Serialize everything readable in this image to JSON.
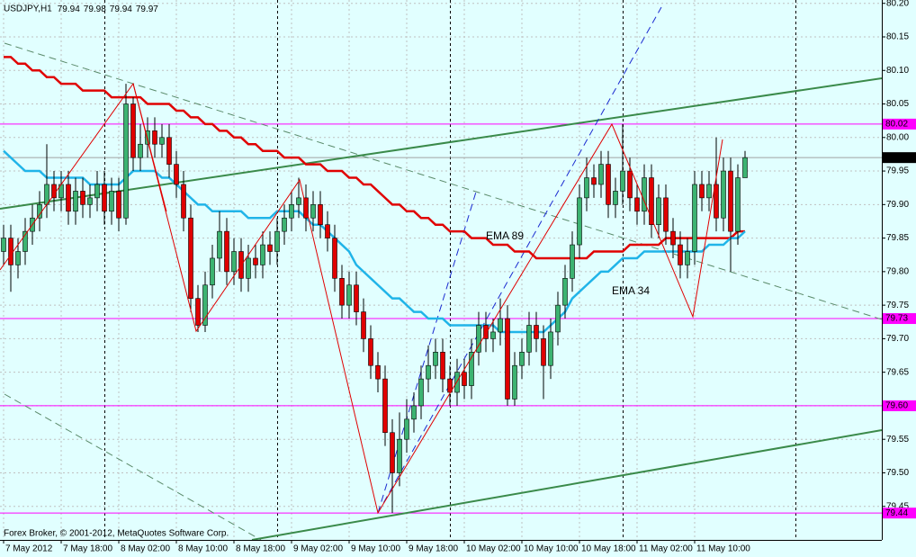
{
  "chart_data": {
    "type": "candlestick",
    "title": "USDJPY,H1",
    "header_ohlc": [
      79.94,
      79.98,
      79.94,
      79.97
    ],
    "footer": "Forex Broker, © 2001-2012, MetaQuotes Software Corp.",
    "categories": [
      "7 May 2012",
      null,
      null,
      null,
      null,
      null,
      null,
      null,
      "7 May 18:00",
      null,
      null,
      null,
      null,
      null,
      null,
      null,
      "8 May 02:00",
      null,
      null,
      null,
      null,
      null,
      null,
      null,
      "8 May 10:00",
      null,
      null,
      null,
      null,
      null,
      null,
      null,
      "8 May 18:00",
      null,
      null,
      null,
      null,
      null,
      null,
      null,
      "9 May 02:00",
      null,
      null,
      null,
      null,
      null,
      null,
      null,
      "9 May 10:00",
      null,
      null,
      null,
      null,
      null,
      null,
      null,
      "9 May 18:00",
      null,
      null,
      null,
      null,
      null,
      null,
      null,
      "10 May 02:00",
      null,
      null,
      null,
      null,
      null,
      null,
      null,
      "10 May 10:00",
      null,
      null,
      null,
      null,
      null,
      null,
      null,
      "10 May 18:00",
      null,
      null,
      null,
      null,
      null,
      null,
      null,
      "11 May 02:00",
      null,
      null,
      null,
      null,
      null,
      null,
      null,
      "11 May 10:00",
      null,
      null,
      null,
      null,
      null,
      null,
      null
    ],
    "open": [
      79.83,
      79.85,
      79.81,
      79.83,
      79.86,
      79.88,
      79.9,
      79.93,
      79.91,
      79.93,
      79.89,
      79.92,
      79.9,
      79.91,
      79.93,
      79.89,
      79.92,
      79.88,
      80.05,
      79.97,
      79.99,
      80.01,
      79.99,
      80.0,
      79.96,
      79.93,
      79.88,
      79.76,
      79.72,
      79.78,
      79.82,
      79.86,
      79.8,
      79.83,
      79.79,
      79.82,
      79.81,
      79.84,
      79.83,
      79.86,
      79.88,
      79.9,
      79.91,
      79.88,
      79.9,
      79.87,
      79.85,
      79.79,
      79.75,
      79.78,
      79.74,
      79.7,
      79.66,
      79.64,
      79.56,
      79.5,
      79.55,
      79.58,
      79.6,
      79.64,
      79.66,
      79.68,
      79.64,
      79.62,
      79.65,
      79.63,
      79.68,
      79.72,
      79.7,
      79.71,
      79.73,
      79.61,
      79.66,
      79.68,
      79.72,
      79.7,
      79.66,
      79.71,
      79.75,
      79.79,
      79.84,
      79.91,
      79.94,
      79.93,
      79.96,
      79.9,
      79.92,
      79.95,
      79.91,
      79.89,
      79.94,
      79.87,
      79.91,
      79.86,
      79.84,
      79.81,
      79.83,
      79.93,
      79.91,
      79.93,
      79.88,
      79.95,
      79.86,
      79.94
    ],
    "high": [
      79.87,
      79.87,
      79.85,
      79.88,
      79.9,
      79.92,
      79.99,
      79.95,
      79.95,
      79.95,
      79.94,
      79.94,
      79.93,
      79.95,
      79.95,
      79.94,
      79.94,
      80.08,
      80.06,
      80.02,
      80.03,
      80.03,
      80.02,
      80.02,
      79.98,
      79.95,
      79.9,
      79.78,
      79.8,
      79.84,
      79.89,
      79.88,
      79.85,
      79.85,
      79.84,
      79.84,
      79.86,
      79.86,
      79.88,
      79.9,
      79.92,
      79.94,
      79.93,
      79.92,
      79.92,
      79.89,
      79.87,
      79.81,
      79.8,
      79.8,
      79.76,
      79.72,
      79.68,
      79.66,
      79.58,
      79.59,
      79.61,
      79.62,
      79.66,
      79.69,
      79.7,
      79.7,
      79.66,
      79.67,
      79.67,
      79.7,
      79.74,
      79.74,
      79.73,
      79.76,
      79.75,
      79.68,
      79.7,
      79.74,
      79.74,
      79.72,
      79.73,
      79.77,
      79.81,
      79.86,
      79.93,
      79.97,
      79.96,
      79.98,
      79.98,
      79.94,
      80.02,
      79.97,
      79.93,
      79.96,
      79.96,
      79.93,
      79.93,
      79.88,
      79.86,
      79.85,
      79.95,
      79.95,
      79.95,
      80.0,
      79.97,
      79.97,
      79.96,
      79.98
    ],
    "low": [
      79.81,
      79.77,
      79.79,
      79.81,
      79.84,
      79.86,
      79.88,
      79.89,
      79.89,
      79.87,
      79.87,
      79.88,
      79.88,
      79.89,
      79.87,
      79.87,
      79.86,
      79.87,
      79.95,
      79.95,
      79.97,
      79.97,
      79.97,
      79.94,
      79.91,
      79.86,
      79.74,
      79.71,
      79.71,
      79.76,
      79.8,
      79.78,
      79.78,
      79.77,
      79.77,
      79.79,
      79.79,
      79.81,
      79.81,
      79.84,
      79.86,
      79.88,
      79.86,
      79.86,
      79.85,
      79.83,
      79.77,
      79.73,
      79.73,
      79.72,
      79.68,
      79.64,
      79.62,
      79.54,
      79.44,
      79.48,
      79.53,
      79.56,
      79.58,
      79.62,
      79.64,
      79.62,
      79.6,
      79.6,
      79.61,
      79.61,
      79.66,
      79.68,
      79.68,
      79.69,
      79.6,
      79.6,
      79.64,
      79.66,
      79.68,
      79.61,
      79.64,
      79.69,
      79.73,
      79.77,
      79.82,
      79.89,
      79.91,
      79.91,
      79.88,
      79.88,
      79.9,
      79.89,
      79.87,
      79.87,
      79.85,
      79.85,
      79.84,
      79.82,
      79.79,
      79.79,
      79.81,
      79.89,
      79.89,
      79.86,
      79.86,
      79.8,
      79.84,
      79.94
    ],
    "close": [
      79.85,
      79.81,
      79.83,
      79.86,
      79.88,
      79.9,
      79.93,
      79.91,
      79.93,
      79.89,
      79.92,
      79.9,
      79.91,
      79.93,
      79.89,
      79.92,
      79.88,
      80.05,
      79.97,
      79.99,
      80.01,
      79.99,
      80.0,
      79.96,
      79.93,
      79.88,
      79.76,
      79.72,
      79.78,
      79.82,
      79.86,
      79.8,
      79.83,
      79.79,
      79.82,
      79.81,
      79.84,
      79.83,
      79.86,
      79.88,
      79.9,
      79.91,
      79.88,
      79.9,
      79.87,
      79.85,
      79.79,
      79.75,
      79.78,
      79.74,
      79.7,
      79.66,
      79.64,
      79.56,
      79.5,
      79.55,
      79.58,
      79.6,
      79.64,
      79.66,
      79.68,
      79.64,
      79.62,
      79.65,
      79.63,
      79.68,
      79.72,
      79.7,
      79.71,
      79.73,
      79.61,
      79.66,
      79.68,
      79.72,
      79.7,
      79.66,
      79.71,
      79.75,
      79.79,
      79.84,
      79.91,
      79.94,
      79.93,
      79.96,
      79.9,
      79.92,
      79.95,
      79.91,
      79.89,
      79.94,
      79.87,
      79.91,
      79.86,
      79.84,
      79.81,
      79.83,
      79.93,
      79.91,
      79.93,
      79.88,
      79.95,
      79.86,
      79.94,
      79.97
    ],
    "up_color": "#3cb371",
    "down_color": "#e00000",
    "series": [
      {
        "name": "EMA 89",
        "color": "#e00000",
        "values": [
          80.12,
          80.12,
          80.11,
          80.11,
          80.1,
          80.1,
          80.09,
          80.09,
          80.08,
          80.08,
          80.08,
          80.07,
          80.07,
          80.07,
          80.07,
          80.06,
          80.06,
          80.06,
          80.06,
          80.06,
          80.05,
          80.05,
          80.05,
          80.05,
          80.04,
          80.04,
          80.03,
          80.03,
          80.02,
          80.02,
          80.01,
          80.01,
          80.0,
          80.0,
          79.99,
          79.99,
          79.98,
          79.98,
          79.98,
          79.97,
          79.97,
          79.97,
          79.96,
          79.96,
          79.96,
          79.95,
          79.95,
          79.95,
          79.94,
          79.94,
          79.93,
          79.93,
          79.92,
          79.91,
          79.9,
          79.9,
          79.89,
          79.89,
          79.88,
          79.88,
          79.87,
          79.87,
          79.86,
          79.86,
          79.86,
          79.85,
          79.85,
          79.85,
          79.84,
          79.84,
          79.84,
          79.83,
          79.83,
          79.83,
          79.82,
          79.82,
          79.82,
          79.82,
          79.82,
          79.82,
          79.82,
          79.82,
          79.83,
          79.83,
          79.83,
          79.83,
          79.83,
          79.84,
          79.84,
          79.84,
          79.84,
          79.84,
          79.85,
          79.85,
          79.85,
          79.85,
          79.85,
          79.85,
          79.85,
          79.85,
          79.85,
          79.85,
          79.86,
          79.86
        ]
      },
      {
        "name": "EMA 34",
        "color": "#20b4e8",
        "values": [
          79.98,
          79.97,
          79.96,
          79.95,
          79.95,
          79.95,
          79.94,
          79.94,
          79.94,
          79.94,
          79.94,
          79.94,
          79.93,
          79.93,
          79.93,
          79.93,
          79.93,
          79.94,
          79.95,
          79.95,
          79.95,
          79.95,
          79.94,
          79.94,
          79.93,
          79.92,
          79.91,
          79.9,
          79.9,
          79.89,
          79.89,
          79.89,
          79.89,
          79.89,
          79.88,
          79.88,
          79.88,
          79.88,
          79.89,
          79.89,
          79.89,
          79.89,
          79.88,
          79.87,
          79.87,
          79.86,
          79.85,
          79.84,
          79.83,
          79.81,
          79.8,
          79.79,
          79.78,
          79.77,
          79.76,
          79.76,
          79.75,
          79.74,
          79.74,
          79.73,
          79.73,
          79.73,
          79.72,
          79.72,
          79.72,
          79.72,
          79.72,
          79.72,
          79.72,
          79.71,
          79.71,
          79.71,
          79.71,
          79.71,
          79.71,
          79.71,
          79.72,
          79.73,
          79.74,
          79.76,
          79.77,
          79.78,
          79.79,
          79.8,
          79.8,
          79.81,
          79.82,
          79.82,
          79.82,
          79.83,
          79.83,
          79.83,
          79.83,
          79.83,
          79.83,
          79.83,
          79.83,
          79.83,
          79.84,
          79.84,
          79.84,
          79.85,
          79.85,
          79.86
        ]
      }
    ],
    "levels": [
      80.02,
      79.73,
      {
        "value": 79.6,
        "label": "79.60"
      },
      79.44
    ],
    "level_color": "#ff00ff",
    "ylim": [
      79.4,
      80.205
    ],
    "yticks": [
      {
        "value": 80.2,
        "label": "80.20"
      },
      80.15,
      {
        "value": 80.1,
        "label": "80.10"
      },
      80.05,
      {
        "value": 80,
        "label": "80.00"
      },
      79.95,
      {
        "value": 79.9,
        "label": "79.90"
      },
      79.85,
      {
        "value": 79.8,
        "label": "79.80"
      },
      79.75,
      {
        "value": 79.7,
        "label": "79.70"
      },
      79.65,
      {
        "value": 79.6,
        "label": "79.60"
      },
      79.55,
      {
        "value": 79.5,
        "label": "79.50"
      },
      79.45
    ],
    "grid": true
  }
}
